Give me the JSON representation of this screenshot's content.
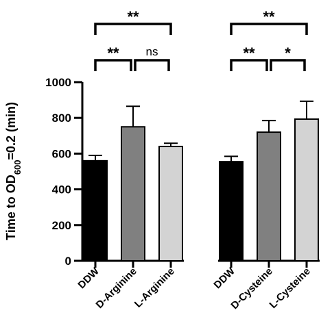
{
  "chart_data": {
    "type": "bar",
    "ylabel": {
      "prefix": "Time to OD",
      "subscript": "600",
      "suffix": "=0.2 (min)"
    },
    "ylim": [
      0,
      1000
    ],
    "yticks": [
      0,
      200,
      400,
      600,
      800,
      1000
    ],
    "groups": [
      {
        "bars": [
          {
            "category": "DDW",
            "value": 560,
            "error": 30,
            "color": "#000000"
          },
          {
            "category": "D-Arginine",
            "value": 750,
            "error": 115,
            "color": "#808080"
          },
          {
            "category": "L-Arginine",
            "value": 640,
            "error": 18,
            "color": "#d3d3d3"
          }
        ],
        "significance": [
          {
            "from": 0,
            "to": 1,
            "label": "**"
          },
          {
            "from": 1,
            "to": 2,
            "label": "ns"
          },
          {
            "from": 0,
            "to": 2,
            "label": "**"
          }
        ]
      },
      {
        "bars": [
          {
            "category": "DDW",
            "value": 555,
            "error": 30,
            "color": "#000000"
          },
          {
            "category": "D-Cysteine",
            "value": 720,
            "error": 65,
            "color": "#808080"
          },
          {
            "category": "L-Cysteine",
            "value": 793,
            "error": 100,
            "color": "#d3d3d3"
          }
        ],
        "significance": [
          {
            "from": 0,
            "to": 1,
            "label": "**"
          },
          {
            "from": 1,
            "to": 2,
            "label": "*"
          },
          {
            "from": 0,
            "to": 2,
            "label": "**"
          }
        ]
      }
    ]
  }
}
